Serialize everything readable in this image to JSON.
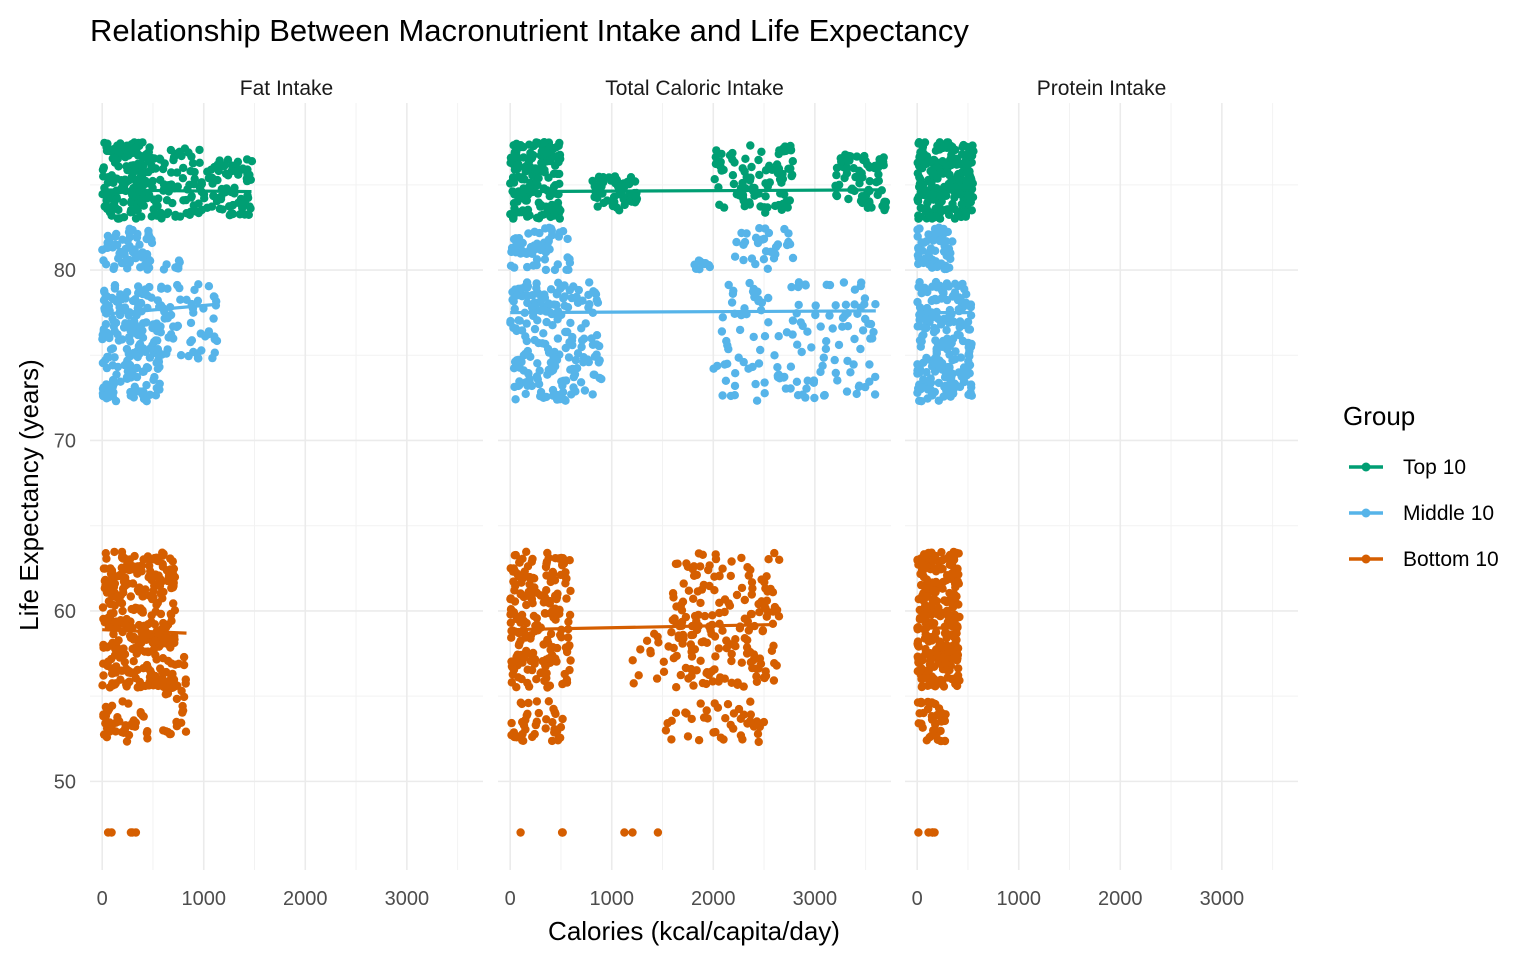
{
  "chart_data": {
    "type": "scatter",
    "title": "Relationship Between Macronutrient Intake and Life Expectancy",
    "xlabel": "Calories (kcal/capita/day)",
    "ylabel": "Life Expectancy (years)",
    "xlim": [
      -120,
      3750
    ],
    "ylim": [
      44.8,
      89.8
    ],
    "x_ticks": [
      0,
      1000,
      2000,
      3000
    ],
    "x_tick_labels": [
      "0",
      "1000",
      "2000",
      "3000"
    ],
    "y_ticks": [
      50,
      60,
      70,
      80
    ],
    "y_tick_labels": [
      "50",
      "60",
      "70",
      "80"
    ],
    "grid": true,
    "legend": {
      "title": "Group",
      "position": "right",
      "items": [
        {
          "label": "Top 10",
          "color": "#009E73"
        },
        {
          "label": "Middle 10",
          "color": "#56B4E9"
        },
        {
          "label": "Bottom 10",
          "color": "#D55E00"
        }
      ]
    },
    "panels": [
      {
        "strip_label": "Fat Intake",
        "series": [
          {
            "group": "Top 10",
            "color": "#009E73",
            "clusters": [
              {
                "x_min": 0,
                "x_max": 500,
                "y_min": 83.0,
                "y_max": 87.5,
                "n": 170
              },
              {
                "x_min": 500,
                "x_max": 1000,
                "y_min": 83.0,
                "y_max": 87.2,
                "n": 70
              },
              {
                "x_min": 1000,
                "x_max": 1480,
                "y_min": 83.2,
                "y_max": 86.5,
                "n": 70
              }
            ],
            "trend": [
              [
                0,
                84.7
              ],
              [
                1470,
                84.6
              ]
            ]
          },
          {
            "group": "Middle 10",
            "color": "#56B4E9",
            "clusters": [
              {
                "x_min": 0,
                "x_max": 500,
                "y_min": 80.0,
                "y_max": 82.5,
                "n": 60
              },
              {
                "x_min": 0,
                "x_max": 600,
                "y_min": 72.3,
                "y_max": 79.3,
                "n": 190
              },
              {
                "x_min": 600,
                "x_max": 1150,
                "y_min": 74.8,
                "y_max": 79.3,
                "n": 50
              },
              {
                "x_min": 600,
                "x_max": 780,
                "y_min": 80.0,
                "y_max": 80.6,
                "n": 8
              }
            ],
            "trend": [
              [
                0,
                77.4
              ],
              [
                1150,
                78.0
              ]
            ]
          },
          {
            "group": "Bottom 10",
            "color": "#D55E00",
            "clusters": [
              {
                "x_min": 0,
                "x_max": 720,
                "y_min": 55.5,
                "y_max": 63.5,
                "n": 320
              },
              {
                "x_min": 0,
                "x_max": 450,
                "y_min": 52.3,
                "y_max": 54.7,
                "n": 40
              },
              {
                "x_min": 600,
                "x_max": 850,
                "y_min": 52.3,
                "y_max": 57.5,
                "n": 30
              },
              {
                "x_min": 0,
                "x_max": 380,
                "y_min": 47.0,
                "y_max": 47.0,
                "n": 5
              }
            ],
            "trend": [
              [
                0,
                58.9
              ],
              [
                830,
                58.7
              ]
            ]
          }
        ]
      },
      {
        "strip_label": "Total Caloric Intake",
        "series": [
          {
            "group": "Top 10",
            "color": "#009E73",
            "clusters": [
              {
                "x_min": 0,
                "x_max": 500,
                "y_min": 83.0,
                "y_max": 87.5,
                "n": 160
              },
              {
                "x_min": 800,
                "x_max": 1250,
                "y_min": 83.5,
                "y_max": 85.5,
                "n": 60
              },
              {
                "x_min": 2000,
                "x_max": 2800,
                "y_min": 83.3,
                "y_max": 87.4,
                "n": 90
              },
              {
                "x_min": 3200,
                "x_max": 3700,
                "y_min": 83.5,
                "y_max": 86.8,
                "n": 70
              }
            ],
            "trend": [
              [
                0,
                84.6
              ],
              [
                3650,
                84.7
              ]
            ]
          },
          {
            "group": "Middle 10",
            "color": "#56B4E9",
            "clusters": [
              {
                "x_min": 0,
                "x_max": 600,
                "y_min": 80.0,
                "y_max": 82.5,
                "n": 60
              },
              {
                "x_min": 0,
                "x_max": 900,
                "y_min": 72.3,
                "y_max": 79.3,
                "n": 200
              },
              {
                "x_min": 1800,
                "x_max": 2000,
                "y_min": 80.0,
                "y_max": 80.6,
                "n": 10
              },
              {
                "x_min": 2000,
                "x_max": 3600,
                "y_min": 72.3,
                "y_max": 79.3,
                "n": 140
              },
              {
                "x_min": 2200,
                "x_max": 2800,
                "y_min": 80.0,
                "y_max": 82.5,
                "n": 30
              }
            ],
            "trend": [
              [
                0,
                77.5
              ],
              [
                3600,
                77.6
              ]
            ]
          },
          {
            "group": "Bottom 10",
            "color": "#D55E00",
            "clusters": [
              {
                "x_min": 0,
                "x_max": 600,
                "y_min": 55.5,
                "y_max": 63.5,
                "n": 200
              },
              {
                "x_min": 0,
                "x_max": 520,
                "y_min": 52.3,
                "y_max": 54.7,
                "n": 40
              },
              {
                "x_min": 1600,
                "x_max": 2650,
                "y_min": 55.5,
                "y_max": 63.5,
                "n": 180
              },
              {
                "x_min": 1200,
                "x_max": 1800,
                "y_min": 55.5,
                "y_max": 59.0,
                "n": 20
              },
              {
                "x_min": 1500,
                "x_max": 2500,
                "y_min": 52.3,
                "y_max": 54.7,
                "n": 40
              },
              {
                "x_min": 0,
                "x_max": 1600,
                "y_min": 47.0,
                "y_max": 47.0,
                "n": 6
              }
            ],
            "trend": [
              [
                0,
                58.9
              ],
              [
                2600,
                59.2
              ]
            ]
          }
        ]
      },
      {
        "strip_label": "Protein Intake",
        "series": [
          {
            "group": "Top 10",
            "color": "#009E73",
            "clusters": [
              {
                "x_min": 0,
                "x_max": 560,
                "y_min": 83.0,
                "y_max": 87.5,
                "n": 220
              }
            ],
            "trend": [
              [
                0,
                84.8
              ],
              [
                550,
                84.8
              ]
            ]
          },
          {
            "group": "Middle 10",
            "color": "#56B4E9",
            "clusters": [
              {
                "x_min": 0,
                "x_max": 350,
                "y_min": 80.0,
                "y_max": 82.5,
                "n": 60
              },
              {
                "x_min": 0,
                "x_max": 540,
                "y_min": 72.3,
                "y_max": 79.3,
                "n": 220
              }
            ],
            "trend": [
              [
                0,
                77.5
              ],
              [
                540,
                77.5
              ]
            ]
          },
          {
            "group": "Bottom 10",
            "color": "#D55E00",
            "clusters": [
              {
                "x_min": 0,
                "x_max": 420,
                "y_min": 55.5,
                "y_max": 63.5,
                "n": 260
              },
              {
                "x_min": 0,
                "x_max": 300,
                "y_min": 52.3,
                "y_max": 54.7,
                "n": 40
              },
              {
                "x_min": 0,
                "x_max": 230,
                "y_min": 47.0,
                "y_max": 47.0,
                "n": 5
              }
            ],
            "trend": [
              [
                0,
                59.0
              ],
              [
                420,
                59.0
              ]
            ]
          }
        ]
      }
    ]
  }
}
